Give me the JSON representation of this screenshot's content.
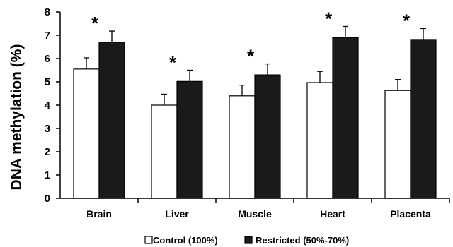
{
  "chart_data": {
    "type": "bar",
    "ylabel": "DNA methylation (%)",
    "ylim": [
      0,
      8
    ],
    "yticks": [
      "0",
      "1",
      "2",
      "3",
      "4",
      "5",
      "6",
      "7",
      "8"
    ],
    "categories": [
      "Brain",
      "Liver",
      "Muscle",
      "Heart",
      "Placenta"
    ],
    "series": [
      {
        "name": "Control (100%)",
        "color": "#ffffff",
        "values": [
          5.55,
          4.0,
          4.4,
          4.97,
          4.63
        ],
        "errors": [
          0.48,
          0.47,
          0.46,
          0.48,
          0.47
        ]
      },
      {
        "name": "Restricted (50%-70%)",
        "color": "#1a1a1a",
        "values": [
          6.7,
          5.02,
          5.3,
          6.9,
          6.82
        ],
        "errors": [
          0.48,
          0.48,
          0.47,
          0.48,
          0.47
        ]
      }
    ],
    "annotations": [
      "*",
      "*",
      "*",
      "*",
      "*"
    ],
    "grid": false,
    "legend": "bottom"
  }
}
